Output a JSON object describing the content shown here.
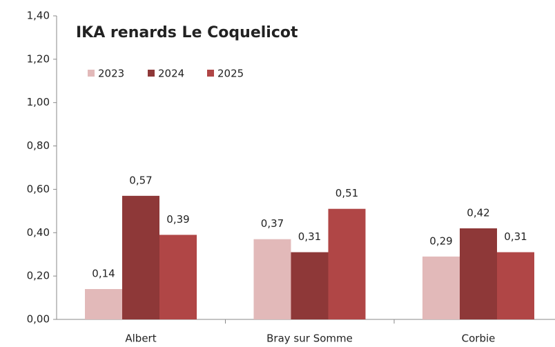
{
  "chart_data": {
    "type": "bar",
    "title": "IKA renards Le Coquelicot",
    "categories": [
      "Albert",
      "Bray sur Somme",
      "Corbie"
    ],
    "series": [
      {
        "name": "2023",
        "color": "#e2b9b9",
        "values": [
          0.14,
          0.37,
          0.29
        ],
        "value_labels": [
          "0,14",
          "0,37",
          "0,29"
        ]
      },
      {
        "name": "2024",
        "color": "#8e3838",
        "values": [
          0.57,
          0.31,
          0.42
        ],
        "value_labels": [
          "0,57",
          "0,31",
          "0,42"
        ]
      },
      {
        "name": "2025",
        "color": "#b04646",
        "values": [
          0.39,
          0.51,
          0.31
        ],
        "value_labels": [
          "0,39",
          "0,51",
          "0,31"
        ]
      }
    ],
    "ylim": [
      0,
      1.4
    ],
    "yticks": [
      {
        "value": 0,
        "label": "0,00"
      },
      {
        "value": 0.2,
        "label": "0,20"
      },
      {
        "value": 0.4,
        "label": "0,40"
      },
      {
        "value": 0.6,
        "label": "0,60"
      },
      {
        "value": 0.8,
        "label": "0,80"
      },
      {
        "value": 1.0,
        "label": "1,00"
      },
      {
        "value": 1.2,
        "label": "1,20"
      },
      {
        "value": 1.4,
        "label": "1,40"
      }
    ],
    "legend": "top-left",
    "grid": false
  }
}
